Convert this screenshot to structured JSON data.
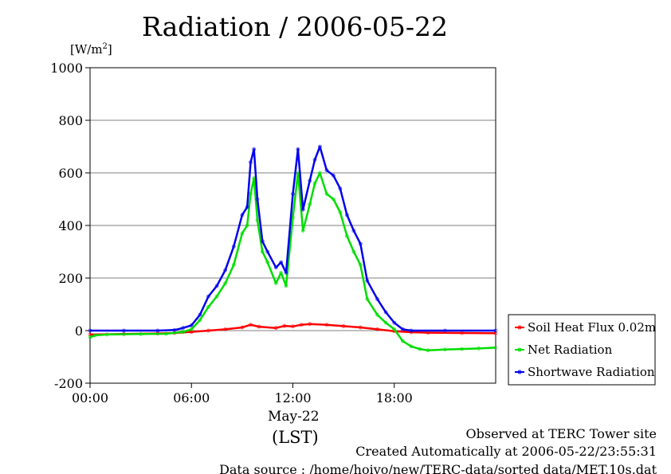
{
  "title": "Radiation / 2006-05-22",
  "y_unit": {
    "prefix": "[W/m",
    "sup": "2",
    "suffix": "]"
  },
  "x_date_label": "May-22",
  "x_tz_label": "(LST)",
  "notes": {
    "site": "Observed at TERC Tower site",
    "created": "Created Automatically at 2006-05-22/23:55:31",
    "source": "Data source : /home/hoivo/new/TERC-data/sorted  data/MET.10s.dat"
  },
  "chart_data": {
    "type": "line",
    "x_unit": "hours (LST)",
    "xlim": [
      0,
      24
    ],
    "ylim": [
      -200,
      1000
    ],
    "x_ticks": [
      0,
      6,
      12,
      18
    ],
    "x_tick_labels": [
      "00:00",
      "06:00",
      "12:00",
      "18:00"
    ],
    "y_ticks": [
      -200,
      0,
      200,
      400,
      600,
      800,
      1000
    ],
    "y_tick_labels": [
      "-200",
      "0",
      "200",
      "400",
      "600",
      "800",
      "1000"
    ],
    "grid": true,
    "legend_position": "right-bottom",
    "series": [
      {
        "name": "Soil Heat Flux 0.02m",
        "color": "#ff0000",
        "points": [
          [
            0,
            -15
          ],
          [
            2,
            -13
          ],
          [
            4,
            -11
          ],
          [
            5,
            -9
          ],
          [
            6,
            -5
          ],
          [
            7,
            0
          ],
          [
            8,
            5
          ],
          [
            9,
            12
          ],
          [
            9.5,
            22
          ],
          [
            10,
            15
          ],
          [
            11,
            10
          ],
          [
            11.5,
            18
          ],
          [
            12,
            16
          ],
          [
            12.5,
            22
          ],
          [
            13,
            25
          ],
          [
            14,
            22
          ],
          [
            15,
            17
          ],
          [
            16,
            12
          ],
          [
            17,
            5
          ],
          [
            18,
            -2
          ],
          [
            19,
            -6
          ],
          [
            20,
            -8
          ],
          [
            22,
            -9
          ],
          [
            24,
            -10
          ]
        ]
      },
      {
        "name": "Net Radiation",
        "color": "#00dd00",
        "points": [
          [
            0,
            -25
          ],
          [
            0.3,
            -18
          ],
          [
            1,
            -15
          ],
          [
            3,
            -13
          ],
          [
            4.5,
            -12
          ],
          [
            5.5,
            -5
          ],
          [
            6,
            5
          ],
          [
            6.5,
            40
          ],
          [
            7,
            90
          ],
          [
            7.5,
            130
          ],
          [
            8,
            180
          ],
          [
            8.5,
            250
          ],
          [
            9,
            370
          ],
          [
            9.3,
            400
          ],
          [
            9.5,
            520
          ],
          [
            9.7,
            580
          ],
          [
            9.9,
            420
          ],
          [
            10.2,
            300
          ],
          [
            10.5,
            260
          ],
          [
            11,
            180
          ],
          [
            11.3,
            220
          ],
          [
            11.6,
            170
          ],
          [
            12,
            430
          ],
          [
            12.3,
            600
          ],
          [
            12.6,
            380
          ],
          [
            13,
            480
          ],
          [
            13.3,
            560
          ],
          [
            13.6,
            600
          ],
          [
            14,
            520
          ],
          [
            14.4,
            500
          ],
          [
            14.8,
            450
          ],
          [
            15.2,
            360
          ],
          [
            15.6,
            300
          ],
          [
            16,
            250
          ],
          [
            16.4,
            120
          ],
          [
            17,
            60
          ],
          [
            17.5,
            30
          ],
          [
            18,
            5
          ],
          [
            18.5,
            -40
          ],
          [
            19,
            -60
          ],
          [
            19.5,
            -70
          ],
          [
            20,
            -75
          ],
          [
            21,
            -72
          ],
          [
            22,
            -70
          ],
          [
            23,
            -68
          ],
          [
            24,
            -65
          ]
        ]
      },
      {
        "name": "Shortwave Radiation",
        "color": "#0000ee",
        "points": [
          [
            0,
            0
          ],
          [
            2,
            0
          ],
          [
            4,
            0
          ],
          [
            5,
            2
          ],
          [
            5.5,
            10
          ],
          [
            6,
            20
          ],
          [
            6.5,
            60
          ],
          [
            7,
            130
          ],
          [
            7.5,
            170
          ],
          [
            8,
            230
          ],
          [
            8.5,
            320
          ],
          [
            9,
            440
          ],
          [
            9.3,
            470
          ],
          [
            9.5,
            640
          ],
          [
            9.7,
            690
          ],
          [
            9.9,
            500
          ],
          [
            10.2,
            340
          ],
          [
            10.5,
            300
          ],
          [
            11,
            240
          ],
          [
            11.3,
            260
          ],
          [
            11.6,
            220
          ],
          [
            12,
            520
          ],
          [
            12.3,
            690
          ],
          [
            12.6,
            460
          ],
          [
            13,
            570
          ],
          [
            13.3,
            650
          ],
          [
            13.6,
            700
          ],
          [
            14,
            610
          ],
          [
            14.4,
            590
          ],
          [
            14.8,
            540
          ],
          [
            15.2,
            440
          ],
          [
            15.6,
            380
          ],
          [
            16,
            330
          ],
          [
            16.4,
            190
          ],
          [
            17,
            120
          ],
          [
            17.5,
            70
          ],
          [
            18,
            30
          ],
          [
            18.5,
            5
          ],
          [
            19,
            0
          ],
          [
            21,
            0
          ],
          [
            24,
            0
          ]
        ]
      }
    ]
  }
}
